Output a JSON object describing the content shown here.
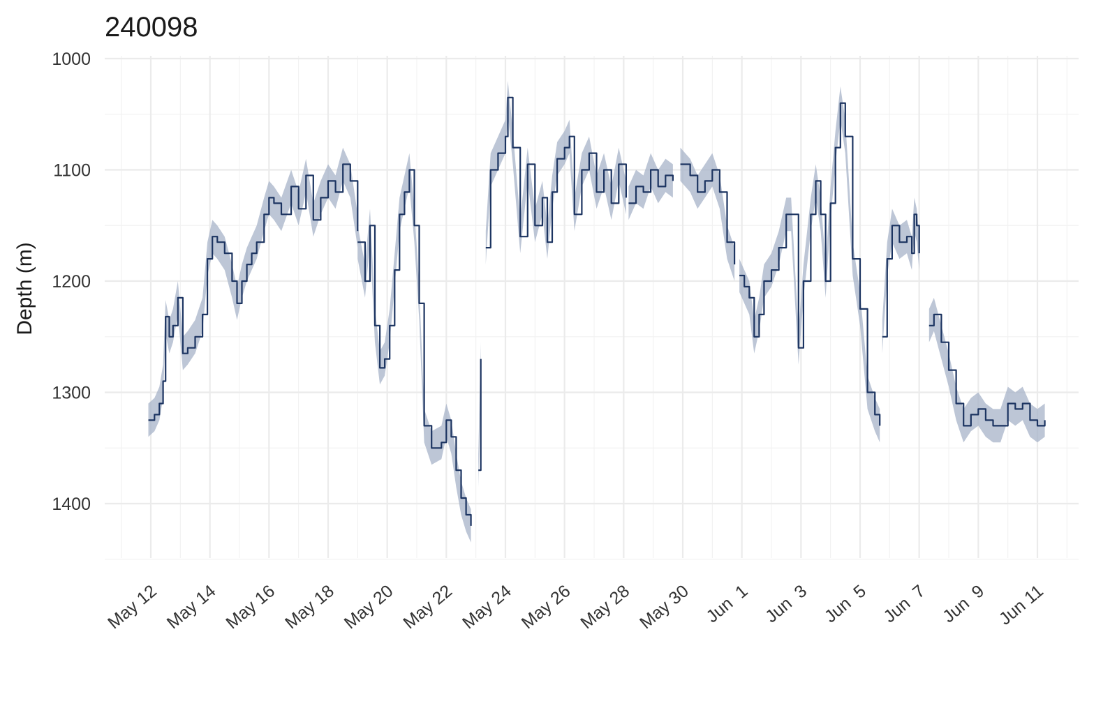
{
  "chart_data": {
    "type": "line",
    "title": "240098",
    "xlabel": "",
    "ylabel": "Depth (m)",
    "y_reversed": true,
    "ylim": [
      1000,
      1450
    ],
    "y_ticks": [
      1000,
      1100,
      1200,
      1300,
      1400
    ],
    "x_start": "2024-05-11",
    "x_end": "2024-06-12",
    "x_tick_labels": [
      "May 12",
      "May 14",
      "May 16",
      "May 18",
      "May 20",
      "May 22",
      "May 24",
      "May 26",
      "May 28",
      "May 30",
      "Jun  1",
      "Jun  3",
      "Jun  5",
      "Jun  7",
      "Jun  9",
      "Jun 11"
    ],
    "x_tick_dates": [
      "2024-05-12",
      "2024-05-14",
      "2024-05-16",
      "2024-05-18",
      "2024-05-20",
      "2024-05-22",
      "2024-05-24",
      "2024-05-26",
      "2024-05-28",
      "2024-05-30",
      "2024-06-01",
      "2024-06-03",
      "2024-06-05",
      "2024-06-07",
      "2024-06-09",
      "2024-06-11"
    ],
    "grid": true,
    "colors": {
      "line": "#1c3461",
      "band": "#a7b3c8"
    },
    "series": [
      {
        "name": "",
        "band_halfwidth": 15,
        "segments": [
          [
            [
              "2024-05-11T22:00",
              1325
            ],
            [
              "2024-05-12T03:00",
              1320
            ],
            [
              "2024-05-12T07:00",
              1310
            ],
            [
              "2024-05-12T10:00",
              1290
            ],
            [
              "2024-05-12T12:00",
              1232
            ],
            [
              "2024-05-12T15:00",
              1250
            ],
            [
              "2024-05-12T18:00",
              1240
            ],
            [
              "2024-05-12T22:00",
              1215
            ],
            [
              "2024-05-13T02:00",
              1265
            ],
            [
              "2024-05-13T06:00",
              1260
            ],
            [
              "2024-05-13T12:00",
              1250
            ],
            [
              "2024-05-13T18:00",
              1230
            ],
            [
              "2024-05-13T22:00",
              1180
            ],
            [
              "2024-05-14T02:00",
              1160
            ],
            [
              "2024-05-14T06:00",
              1165
            ],
            [
              "2024-05-14T12:00",
              1175
            ],
            [
              "2024-05-14T18:00",
              1200
            ],
            [
              "2024-05-14T22:00",
              1220
            ],
            [
              "2024-05-15T02:00",
              1200
            ],
            [
              "2024-05-15T06:00",
              1185
            ],
            [
              "2024-05-15T10:00",
              1175
            ],
            [
              "2024-05-15T14:00",
              1165
            ],
            [
              "2024-05-15T20:00",
              1140
            ],
            [
              "2024-05-16T00:00",
              1125
            ],
            [
              "2024-05-16T04:00",
              1130
            ],
            [
              "2024-05-16T10:00",
              1140
            ],
            [
              "2024-05-16T18:00",
              1115
            ],
            [
              "2024-05-17T00:00",
              1135
            ],
            [
              "2024-05-17T06:00",
              1105
            ],
            [
              "2024-05-17T12:00",
              1145
            ],
            [
              "2024-05-17T18:00",
              1125
            ],
            [
              "2024-05-18T00:00",
              1110
            ],
            [
              "2024-05-18T06:00",
              1120
            ],
            [
              "2024-05-18T12:00",
              1095
            ],
            [
              "2024-05-18T18:00",
              1110
            ],
            [
              "2024-05-19T00:00",
              1155
            ]
          ],
          [
            [
              "2024-05-19T00:00",
              1165
            ],
            [
              "2024-05-19T06:00",
              1200
            ],
            [
              "2024-05-19T10:00",
              1150
            ],
            [
              "2024-05-19T14:00",
              1240
            ],
            [
              "2024-05-19T18:00",
              1278
            ],
            [
              "2024-05-19T22:00",
              1270
            ],
            [
              "2024-05-20T02:00",
              1240
            ],
            [
              "2024-05-20T06:00",
              1190
            ],
            [
              "2024-05-20T10:00",
              1140
            ],
            [
              "2024-05-20T14:00",
              1120
            ],
            [
              "2024-05-20T18:00",
              1100
            ],
            [
              "2024-05-20T22:00",
              1150
            ],
            [
              "2024-05-21T02:00",
              1220
            ],
            [
              "2024-05-21T06:00",
              1330
            ],
            [
              "2024-05-21T12:00",
              1350
            ],
            [
              "2024-05-21T20:00",
              1345
            ],
            [
              "2024-05-22T00:00",
              1325
            ],
            [
              "2024-05-22T04:00",
              1340
            ],
            [
              "2024-05-22T08:00",
              1370
            ],
            [
              "2024-05-22T12:00",
              1395
            ],
            [
              "2024-05-22T16:00",
              1410
            ],
            [
              "2024-05-22T20:00",
              1420
            ]
          ],
          [
            [
              "2024-05-23T02:00",
              1370
            ],
            [
              "2024-05-23T04:00",
              1270
            ]
          ],
          [
            [
              "2024-05-23T08:00",
              1170
            ],
            [
              "2024-05-23T12:00",
              1100
            ],
            [
              "2024-05-23T18:00",
              1085
            ],
            [
              "2024-05-24T00:00",
              1070
            ],
            [
              "2024-05-24T02:00",
              1035
            ],
            [
              "2024-05-24T06:00",
              1080
            ],
            [
              "2024-05-24T12:00",
              1160
            ],
            [
              "2024-05-24T18:00",
              1095
            ],
            [
              "2024-05-25T00:00",
              1150
            ],
            [
              "2024-05-25T06:00",
              1125
            ],
            [
              "2024-05-25T10:00",
              1165
            ],
            [
              "2024-05-25T14:00",
              1120
            ],
            [
              "2024-05-25T18:00",
              1090
            ],
            [
              "2024-05-26T00:00",
              1080
            ],
            [
              "2024-05-26T04:00",
              1070
            ],
            [
              "2024-05-26T08:00",
              1140
            ],
            [
              "2024-05-26T14:00",
              1100
            ],
            [
              "2024-05-26T20:00",
              1085
            ],
            [
              "2024-05-27T02:00",
              1120
            ],
            [
              "2024-05-27T08:00",
              1100
            ],
            [
              "2024-05-27T14:00",
              1130
            ],
            [
              "2024-05-27T20:00",
              1095
            ],
            [
              "2024-05-28T02:00",
              1125
            ]
          ],
          [
            [
              "2024-05-28T04:00",
              1130
            ],
            [
              "2024-05-28T10:00",
              1115
            ],
            [
              "2024-05-28T16:00",
              1120
            ],
            [
              "2024-05-28T22:00",
              1100
            ],
            [
              "2024-05-29T04:00",
              1115
            ],
            [
              "2024-05-29T10:00",
              1105
            ],
            [
              "2024-05-29T16:00",
              1110
            ]
          ],
          [
            [
              "2024-05-29T22:00",
              1095
            ],
            [
              "2024-05-30T06:00",
              1105
            ],
            [
              "2024-05-30T12:00",
              1120
            ],
            [
              "2024-05-30T18:00",
              1110
            ],
            [
              "2024-05-31T00:00",
              1100
            ],
            [
              "2024-05-31T06:00",
              1120
            ],
            [
              "2024-05-31T12:00",
              1165
            ],
            [
              "2024-05-31T18:00",
              1185
            ]
          ],
          [
            [
              "2024-05-31T22:00",
              1195
            ],
            [
              "2024-06-01T02:00",
              1205
            ],
            [
              "2024-06-01T06:00",
              1215
            ],
            [
              "2024-06-01T10:00",
              1250
            ],
            [
              "2024-06-01T14:00",
              1230
            ],
            [
              "2024-06-01T18:00",
              1200
            ],
            [
              "2024-06-02T00:00",
              1190
            ],
            [
              "2024-06-02T06:00",
              1170
            ],
            [
              "2024-06-02T12:00",
              1140
            ],
            [
              "2024-06-02T16:00",
              1140
            ],
            [
              "2024-06-02T22:00",
              1260
            ],
            [
              "2024-06-03T02:00",
              1200
            ],
            [
              "2024-06-03T08:00",
              1140
            ],
            [
              "2024-06-03T12:00",
              1110
            ],
            [
              "2024-06-03T16:00",
              1140
            ],
            [
              "2024-06-03T20:00",
              1200
            ],
            [
              "2024-06-04T00:00",
              1130
            ],
            [
              "2024-06-04T04:00",
              1080
            ],
            [
              "2024-06-04T08:00",
              1040
            ],
            [
              "2024-06-04T12:00",
              1070
            ],
            [
              "2024-06-04T18:00",
              1180
            ],
            [
              "2024-06-05T00:00",
              1225
            ],
            [
              "2024-06-05T06:00",
              1300
            ],
            [
              "2024-06-05T12:00",
              1320
            ],
            [
              "2024-06-05T16:00",
              1330
            ]
          ],
          [
            [
              "2024-06-05T18:00",
              1250
            ],
            [
              "2024-06-05T22:00",
              1180
            ],
            [
              "2024-06-06T02:00",
              1150
            ],
            [
              "2024-06-06T08:00",
              1165
            ],
            [
              "2024-06-06T14:00",
              1160
            ],
            [
              "2024-06-06T18:00",
              1175
            ],
            [
              "2024-06-06T20:00",
              1140
            ],
            [
              "2024-06-06T22:00",
              1150
            ],
            [
              "2024-06-07T00:00",
              1175
            ]
          ],
          [
            [
              "2024-06-07T08:00",
              1240
            ],
            [
              "2024-06-07T12:00",
              1230
            ],
            [
              "2024-06-07T18:00",
              1255
            ],
            [
              "2024-06-08T00:00",
              1280
            ],
            [
              "2024-06-08T06:00",
              1310
            ],
            [
              "2024-06-08T12:00",
              1330
            ],
            [
              "2024-06-08T18:00",
              1320
            ],
            [
              "2024-06-09T00:00",
              1315
            ],
            [
              "2024-06-09T06:00",
              1325
            ],
            [
              "2024-06-09T12:00",
              1330
            ],
            [
              "2024-06-09T18:00",
              1330
            ],
            [
              "2024-06-10T00:00",
              1310
            ],
            [
              "2024-06-10T06:00",
              1315
            ],
            [
              "2024-06-10T12:00",
              1310
            ],
            [
              "2024-06-10T18:00",
              1325
            ],
            [
              "2024-06-11T00:00",
              1330
            ],
            [
              "2024-06-11T06:00",
              1325
            ]
          ]
        ]
      }
    ]
  }
}
